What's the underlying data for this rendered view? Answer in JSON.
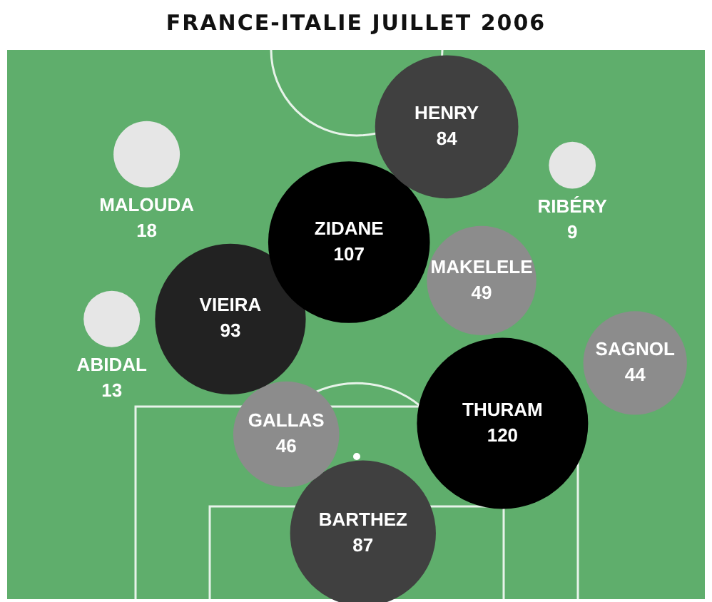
{
  "chart_data": {
    "type": "other",
    "title": "FRANCE-ITALIE JUILLET 2006",
    "data_labels": true,
    "categories": [
      "HENRY",
      "MALOUDA",
      "RIBÉRY",
      "ZIDANE",
      "MAKELELE",
      "VIEIRA",
      "ABIDAL",
      "SAGNOL",
      "THURAM",
      "GALLAS",
      "BARTHEZ"
    ],
    "values": [
      84,
      18,
      9,
      107,
      49,
      93,
      13,
      44,
      120,
      46,
      87
    ],
    "colors": [
      "#404040",
      "#e6e6e6",
      "#e6e6e6",
      "#000000",
      "#8c8c8c",
      "#222222",
      "#e6e6e6",
      "#8c8c8c",
      "#000000",
      "#8c8c8c",
      "#404040"
    ]
  }
}
